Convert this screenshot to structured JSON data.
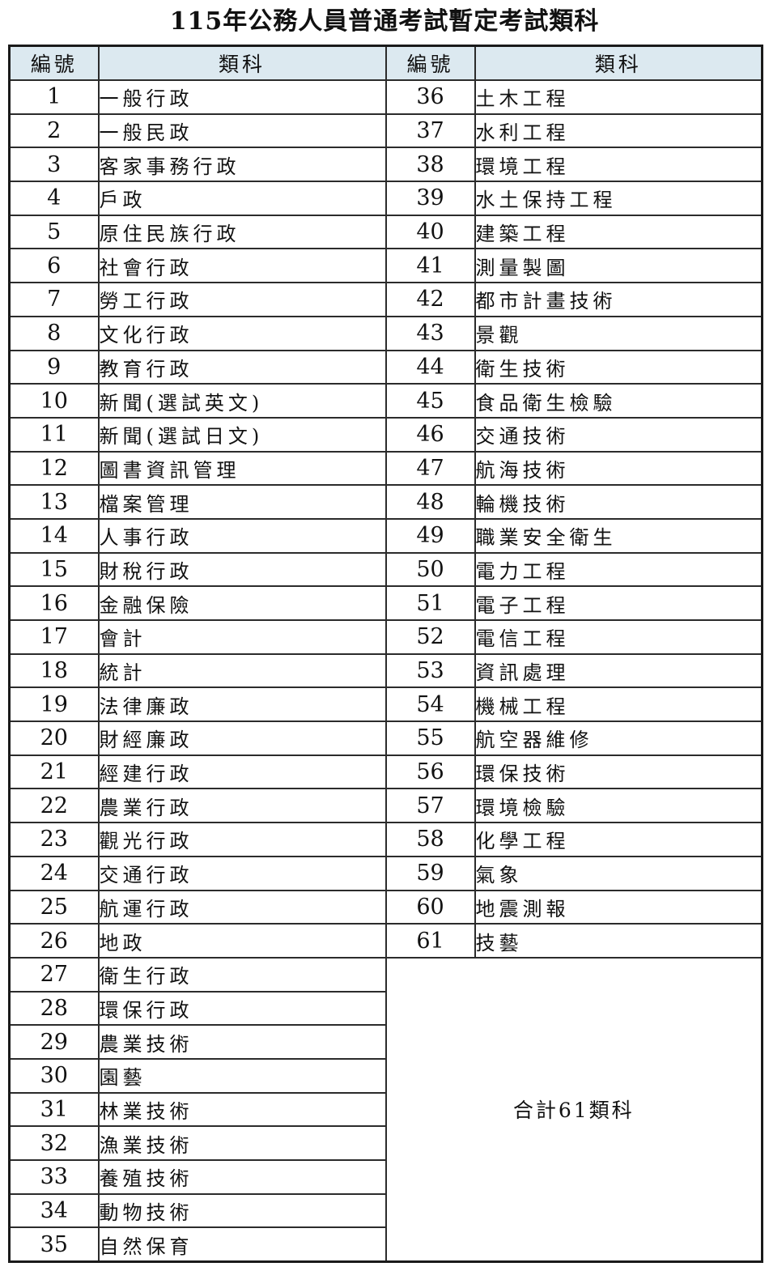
{
  "title": "115年公務人員普通考試暫定考試類科",
  "table": {
    "headers": [
      "編號",
      "類科",
      "編號",
      "類科"
    ],
    "left_rows": [
      {
        "no": "1",
        "name": "一般行政"
      },
      {
        "no": "2",
        "name": "一般民政"
      },
      {
        "no": "3",
        "name": "客家事務行政"
      },
      {
        "no": "4",
        "name": "戶政"
      },
      {
        "no": "5",
        "name": "原住民族行政"
      },
      {
        "no": "6",
        "name": "社會行政"
      },
      {
        "no": "7",
        "name": "勞工行政"
      },
      {
        "no": "8",
        "name": "文化行政"
      },
      {
        "no": "9",
        "name": "教育行政"
      },
      {
        "no": "10",
        "name": "新聞(選試英文)"
      },
      {
        "no": "11",
        "name": "新聞(選試日文)"
      },
      {
        "no": "12",
        "name": "圖書資訊管理"
      },
      {
        "no": "13",
        "name": "檔案管理"
      },
      {
        "no": "14",
        "name": "人事行政"
      },
      {
        "no": "15",
        "name": "財稅行政"
      },
      {
        "no": "16",
        "name": "金融保險"
      },
      {
        "no": "17",
        "name": "會計"
      },
      {
        "no": "18",
        "name": "統計"
      },
      {
        "no": "19",
        "name": "法律廉政"
      },
      {
        "no": "20",
        "name": "財經廉政"
      },
      {
        "no": "21",
        "name": "經建行政"
      },
      {
        "no": "22",
        "name": "農業行政"
      },
      {
        "no": "23",
        "name": "觀光行政"
      },
      {
        "no": "24",
        "name": "交通行政"
      },
      {
        "no": "25",
        "name": "航運行政"
      },
      {
        "no": "26",
        "name": "地政"
      },
      {
        "no": "27",
        "name": "衛生行政"
      },
      {
        "no": "28",
        "name": "環保行政"
      },
      {
        "no": "29",
        "name": "農業技術"
      },
      {
        "no": "30",
        "name": "園藝"
      },
      {
        "no": "31",
        "name": "林業技術"
      },
      {
        "no": "32",
        "name": "漁業技術"
      },
      {
        "no": "33",
        "name": "養殖技術"
      },
      {
        "no": "34",
        "name": "動物技術"
      },
      {
        "no": "35",
        "name": "自然保育"
      }
    ],
    "right_rows": [
      {
        "no": "36",
        "name": "土木工程"
      },
      {
        "no": "37",
        "name": "水利工程"
      },
      {
        "no": "38",
        "name": "環境工程"
      },
      {
        "no": "39",
        "name": "水土保持工程"
      },
      {
        "no": "40",
        "name": "建築工程"
      },
      {
        "no": "41",
        "name": "測量製圖"
      },
      {
        "no": "42",
        "name": "都市計畫技術"
      },
      {
        "no": "43",
        "name": "景觀"
      },
      {
        "no": "44",
        "name": "衛生技術"
      },
      {
        "no": "45",
        "name": "食品衛生檢驗"
      },
      {
        "no": "46",
        "name": "交通技術"
      },
      {
        "no": "47",
        "name": "航海技術"
      },
      {
        "no": "48",
        "name": "輪機技術"
      },
      {
        "no": "49",
        "name": "職業安全衛生"
      },
      {
        "no": "50",
        "name": "電力工程"
      },
      {
        "no": "51",
        "name": "電子工程"
      },
      {
        "no": "52",
        "name": "電信工程"
      },
      {
        "no": "53",
        "name": "資訊處理"
      },
      {
        "no": "54",
        "name": "機械工程"
      },
      {
        "no": "55",
        "name": "航空器維修"
      },
      {
        "no": "56",
        "name": "環保技術"
      },
      {
        "no": "57",
        "name": "環境檢驗"
      },
      {
        "no": "58",
        "name": "化學工程"
      },
      {
        "no": "59",
        "name": "氣象"
      },
      {
        "no": "60",
        "name": "地震測報"
      },
      {
        "no": "61",
        "name": "技藝"
      }
    ],
    "summary": "合計61類科",
    "header_bg": "#dce9f0",
    "border_color": "#2b2b2b"
  }
}
